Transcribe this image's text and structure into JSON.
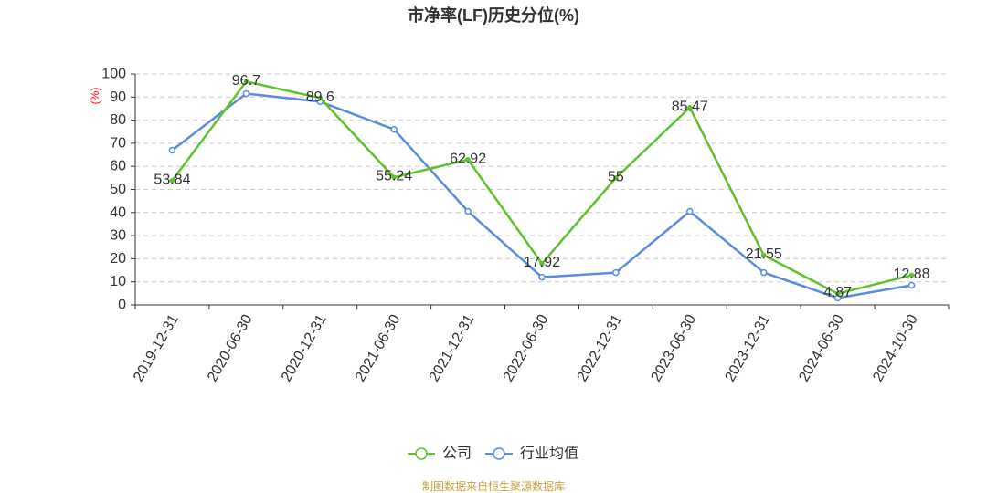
{
  "chart_data": {
    "type": "line",
    "title": "市净率(LF)历史分位(%)",
    "ylabel": "(%)",
    "categories": [
      "2019-12-31",
      "2020-06-30",
      "2020-12-31",
      "2021-06-30",
      "2021-12-31",
      "2022-06-30",
      "2022-12-31",
      "2023-06-30",
      "2023-12-31",
      "2024-06-30",
      "2024-10-30"
    ],
    "ylim": [
      0,
      100
    ],
    "yticks": [
      0,
      10,
      20,
      30,
      40,
      50,
      60,
      70,
      80,
      90,
      100
    ],
    "grid": true,
    "legend_position": "bottom",
    "series": [
      {
        "name": "公司",
        "color": "#5ec22d",
        "data_labels": true,
        "values": [
          53.84,
          96.7,
          89.6,
          55.24,
          62.92,
          17.92,
          55,
          85.47,
          21.55,
          4.87,
          12.88
        ]
      },
      {
        "name": "行业均值",
        "color": "#5b8ce0",
        "data_labels": false,
        "values": [
          67,
          91.5,
          88,
          76,
          40.5,
          12,
          14,
          40.5,
          14,
          3,
          8.5
        ]
      }
    ]
  },
  "footer": {
    "source": "制图数据来自恒生聚源数据库"
  },
  "colors": {
    "ylabel": "#ff0000",
    "footer": "#c9a040",
    "axis": "#333333",
    "grid": "#cccccc"
  }
}
